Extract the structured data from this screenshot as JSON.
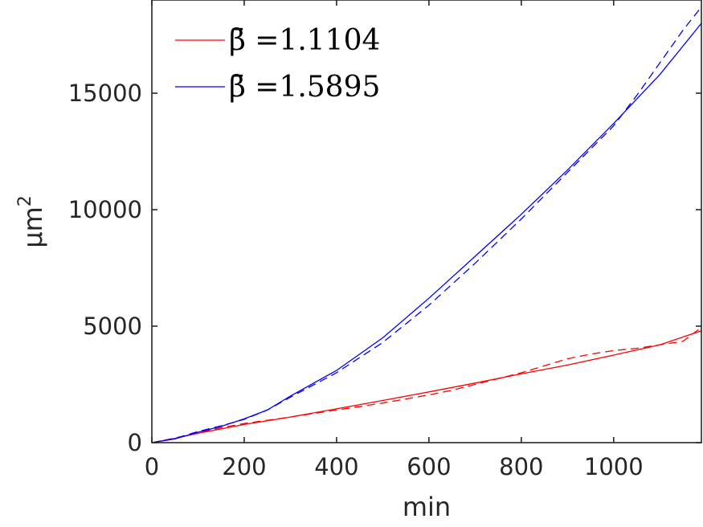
{
  "chart_data": {
    "type": "line",
    "xlabel": "min",
    "ylabel": "μm",
    "ylabel_exponent": "2",
    "xlim": [
      0,
      1190
    ],
    "ylim": [
      0,
      19000
    ],
    "x_ticks": [
      0,
      200,
      400,
      600,
      800,
      1000
    ],
    "y_ticks": [
      0,
      5000,
      10000,
      15000
    ],
    "grid": false,
    "legend_position": "top-left",
    "colors": {
      "red": "#ff0000",
      "blue": "#0000ff",
      "axis": "#262626"
    },
    "series": [
      {
        "name": "β̄ =1.1104",
        "color": "#ff0000",
        "style": "solid",
        "x": [
          0,
          50,
          100,
          150,
          200,
          300,
          400,
          500,
          600,
          700,
          800,
          900,
          1000,
          1100,
          1190
        ],
        "y": [
          0,
          185,
          400,
          590,
          780,
          1100,
          1450,
          1810,
          2180,
          2560,
          2950,
          3330,
          3760,
          4200,
          4800
        ]
      },
      {
        "name": "",
        "color": "#ff0000",
        "style": "dashed",
        "x": [
          0,
          50,
          100,
          150,
          200,
          300,
          400,
          500,
          600,
          650,
          700,
          800,
          850,
          900,
          950,
          1000,
          1050,
          1100,
          1150,
          1190
        ],
        "y": [
          0,
          200,
          420,
          640,
          820,
          1100,
          1400,
          1700,
          2050,
          2250,
          2500,
          3000,
          3300,
          3600,
          3800,
          3950,
          4050,
          4200,
          4350,
          4950
        ]
      },
      {
        "name": "β̄ =1.5895",
        "color": "#0000ff",
        "style": "solid",
        "x": [
          0,
          50,
          100,
          150,
          200,
          250,
          300,
          400,
          500,
          600,
          700,
          800,
          900,
          1000,
          1100,
          1190
        ],
        "y": [
          0,
          160,
          450,
          700,
          1020,
          1400,
          2000,
          3100,
          4500,
          6200,
          8000,
          9800,
          11700,
          13700,
          15800,
          18000
        ]
      },
      {
        "name": "",
        "color": "#0000ff",
        "style": "dashed",
        "x": [
          0,
          50,
          100,
          150,
          200,
          250,
          300,
          400,
          500,
          600,
          700,
          800,
          900,
          1000,
          1050,
          1100,
          1150,
          1190
        ],
        "y": [
          0,
          180,
          480,
          720,
          1000,
          1400,
          1950,
          3000,
          4300,
          5900,
          7700,
          9600,
          11600,
          13600,
          14900,
          16300,
          17700,
          18700
        ]
      }
    ]
  }
}
